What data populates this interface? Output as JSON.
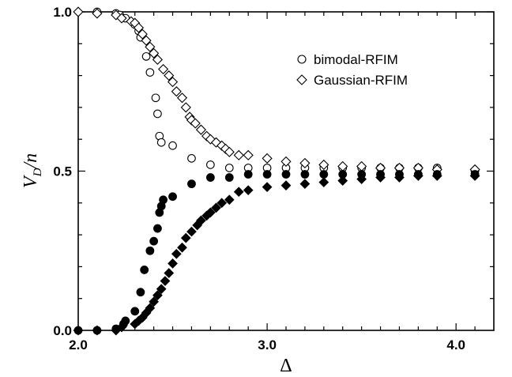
{
  "chart_data": {
    "type": "scatter",
    "xlabel": "Δ",
    "ylabel_main": "V",
    "ylabel_sub": "D",
    "ylabel_tail": "/n",
    "xlim": [
      2.0,
      4.2
    ],
    "ylim": [
      0.0,
      1.0
    ],
    "x_ticks": [
      2.0,
      3.0,
      4.0
    ],
    "x_tick_labels": [
      "2.0",
      "3.0",
      "4.0"
    ],
    "y_ticks": [
      0.0,
      0.5,
      1.0
    ],
    "y_tick_labels": [
      "0.0",
      "0.5",
      "1.0"
    ],
    "legend_position": "top-right",
    "series": [
      {
        "name": "bimodal-RFIM",
        "marker": "circle-open",
        "points": [
          [
            2.1,
            1.0
          ],
          [
            2.2,
            0.995
          ],
          [
            2.22,
            0.99
          ],
          [
            2.25,
            0.98
          ],
          [
            2.3,
            0.96
          ],
          [
            2.32,
            0.94
          ],
          [
            2.33,
            0.92
          ],
          [
            2.36,
            0.86
          ],
          [
            2.38,
            0.81
          ],
          [
            2.41,
            0.73
          ],
          [
            2.42,
            0.68
          ],
          [
            2.43,
            0.61
          ],
          [
            2.44,
            0.59
          ],
          [
            2.5,
            0.58
          ],
          [
            2.6,
            0.54
          ],
          [
            2.7,
            0.52
          ],
          [
            2.8,
            0.51
          ],
          [
            2.9,
            0.51
          ],
          [
            3.0,
            0.51
          ],
          [
            3.1,
            0.51
          ],
          [
            3.2,
            0.51
          ],
          [
            3.3,
            0.51
          ],
          [
            3.4,
            0.51
          ],
          [
            3.5,
            0.51
          ],
          [
            3.6,
            0.51
          ],
          [
            3.7,
            0.51
          ],
          [
            3.8,
            0.51
          ],
          [
            3.9,
            0.51
          ],
          [
            4.1,
            0.5
          ]
        ]
      },
      {
        "name": "Gaussian-RFIM",
        "marker": "diamond-open",
        "points": [
          [
            2.0,
            1.0
          ],
          [
            2.1,
            0.995
          ],
          [
            2.2,
            0.99
          ],
          [
            2.23,
            0.98
          ],
          [
            2.28,
            0.97
          ],
          [
            2.3,
            0.965
          ],
          [
            2.32,
            0.95
          ],
          [
            2.34,
            0.93
          ],
          [
            2.36,
            0.91
          ],
          [
            2.38,
            0.89
          ],
          [
            2.4,
            0.87
          ],
          [
            2.42,
            0.85
          ],
          [
            2.45,
            0.82
          ],
          [
            2.48,
            0.8
          ],
          [
            2.5,
            0.78
          ],
          [
            2.52,
            0.75
          ],
          [
            2.55,
            0.73
          ],
          [
            2.57,
            0.7
          ],
          [
            2.59,
            0.67
          ],
          [
            2.6,
            0.66
          ],
          [
            2.62,
            0.65
          ],
          [
            2.65,
            0.63
          ],
          [
            2.68,
            0.61
          ],
          [
            2.7,
            0.6
          ],
          [
            2.73,
            0.59
          ],
          [
            2.76,
            0.58
          ],
          [
            2.78,
            0.57
          ],
          [
            2.8,
            0.56
          ],
          [
            2.85,
            0.55
          ],
          [
            2.9,
            0.55
          ],
          [
            3.0,
            0.54
          ],
          [
            3.1,
            0.53
          ],
          [
            3.2,
            0.525
          ],
          [
            3.3,
            0.52
          ],
          [
            3.4,
            0.515
          ],
          [
            3.5,
            0.515
          ],
          [
            3.6,
            0.51
          ],
          [
            3.7,
            0.51
          ],
          [
            3.8,
            0.51
          ],
          [
            3.9,
            0.505
          ],
          [
            4.1,
            0.505
          ]
        ]
      },
      {
        "name": "",
        "marker": "circle-filled",
        "points": [
          [
            2.0,
            0.0
          ],
          [
            2.1,
            0.0
          ],
          [
            2.2,
            0.005
          ],
          [
            2.24,
            0.02
          ],
          [
            2.25,
            0.03
          ],
          [
            2.3,
            0.06
          ],
          [
            2.33,
            0.12
          ],
          [
            2.35,
            0.19
          ],
          [
            2.38,
            0.25
          ],
          [
            2.4,
            0.28
          ],
          [
            2.42,
            0.32
          ],
          [
            2.43,
            0.37
          ],
          [
            2.44,
            0.39
          ],
          [
            2.45,
            0.41
          ],
          [
            2.5,
            0.42
          ],
          [
            2.6,
            0.46
          ],
          [
            2.7,
            0.48
          ],
          [
            2.8,
            0.48
          ],
          [
            2.9,
            0.49
          ],
          [
            3.0,
            0.49
          ],
          [
            3.1,
            0.49
          ],
          [
            3.2,
            0.49
          ],
          [
            3.3,
            0.49
          ],
          [
            3.4,
            0.49
          ],
          [
            3.5,
            0.49
          ],
          [
            3.6,
            0.49
          ],
          [
            3.7,
            0.49
          ],
          [
            3.8,
            0.49
          ],
          [
            3.9,
            0.49
          ],
          [
            4.1,
            0.49
          ]
        ]
      },
      {
        "name": "",
        "marker": "diamond-filled",
        "points": [
          [
            2.0,
            0.0
          ],
          [
            2.1,
            0.0
          ],
          [
            2.2,
            0.0
          ],
          [
            2.23,
            0.01
          ],
          [
            2.3,
            0.02
          ],
          [
            2.32,
            0.03
          ],
          [
            2.34,
            0.04
          ],
          [
            2.36,
            0.055
          ],
          [
            2.38,
            0.07
          ],
          [
            2.4,
            0.09
          ],
          [
            2.42,
            0.11
          ],
          [
            2.44,
            0.13
          ],
          [
            2.46,
            0.155
          ],
          [
            2.48,
            0.18
          ],
          [
            2.5,
            0.21
          ],
          [
            2.52,
            0.24
          ],
          [
            2.55,
            0.26
          ],
          [
            2.57,
            0.29
          ],
          [
            2.6,
            0.31
          ],
          [
            2.63,
            0.33
          ],
          [
            2.65,
            0.345
          ],
          [
            2.68,
            0.36
          ],
          [
            2.7,
            0.37
          ],
          [
            2.73,
            0.385
          ],
          [
            2.76,
            0.4
          ],
          [
            2.8,
            0.41
          ],
          [
            2.85,
            0.435
          ],
          [
            2.9,
            0.44
          ],
          [
            3.0,
            0.45
          ],
          [
            3.1,
            0.455
          ],
          [
            3.2,
            0.46
          ],
          [
            3.3,
            0.465
          ],
          [
            3.4,
            0.47
          ],
          [
            3.5,
            0.475
          ],
          [
            3.6,
            0.48
          ],
          [
            3.7,
            0.48
          ],
          [
            3.8,
            0.485
          ],
          [
            3.9,
            0.485
          ],
          [
            4.1,
            0.485
          ]
        ]
      }
    ]
  }
}
